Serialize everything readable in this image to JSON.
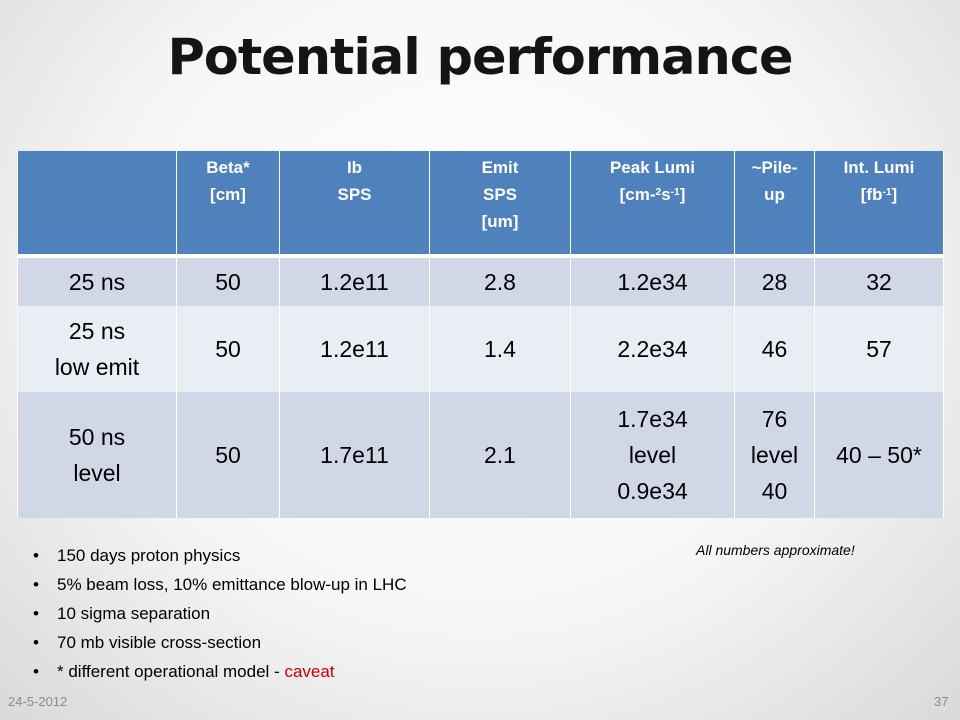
{
  "title": "Potential performance",
  "table": {
    "headers": [
      [
        ""
      ],
      [
        "Beta*",
        "[cm]"
      ],
      [
        "Ib",
        "SPS"
      ],
      [
        "Emit",
        "SPS",
        "[um]"
      ],
      [
        {
          "t": "Peak Lumi"
        },
        {
          "t": "[cm-",
          "s1": "2",
          "m": "s",
          "s2": "-1",
          "e": "]"
        }
      ],
      [
        "~Pile-",
        "up"
      ],
      [
        {
          "t": "Int. Lumi"
        },
        {
          "t": "[fb",
          "s1": "-1",
          "e": "]"
        }
      ]
    ],
    "rows": [
      [
        [
          "25 ns"
        ],
        [
          "50"
        ],
        [
          "1.2e11"
        ],
        [
          "2.8"
        ],
        [
          "1.2e34"
        ],
        [
          "28"
        ],
        [
          "32"
        ]
      ],
      [
        [
          "25 ns",
          "low emit"
        ],
        [
          "50"
        ],
        [
          "1.2e11"
        ],
        [
          "1.4"
        ],
        [
          "2.2e34"
        ],
        [
          "46"
        ],
        [
          "57"
        ]
      ],
      [
        [
          "50 ns",
          "level"
        ],
        [
          "50"
        ],
        [
          "1.7e11"
        ],
        [
          "2.1"
        ],
        [
          "1.7e34",
          "level",
          "0.9e34"
        ],
        [
          "76",
          "level",
          "40"
        ],
        [
          "40 – 50*"
        ]
      ]
    ]
  },
  "notes": [
    {
      "text": "150 days proton physics"
    },
    {
      "text": "5% beam loss, 10% emittance blow-up in LHC"
    },
    {
      "text": "10 sigma separation"
    },
    {
      "text": "70 mb visible cross-section"
    },
    {
      "text": "* different operational model - ",
      "highlight": "caveat"
    }
  ],
  "approx_note": "All numbers approximate!",
  "footer": {
    "date": "24-5-2012",
    "page": "37"
  },
  "colors": {
    "header_bg": "#4f81bd",
    "row_dark": "#d0d8e8",
    "row_light": "#e9edf4",
    "caveat": "#c00000"
  }
}
